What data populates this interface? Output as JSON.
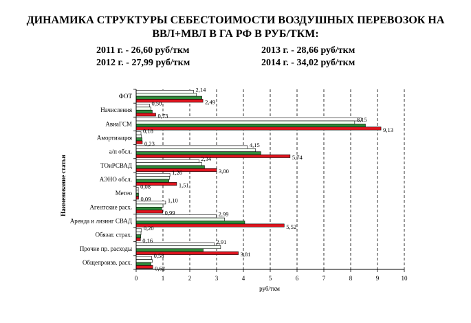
{
  "title_line1": "ДИНАМИКА СТРУКТУРЫ СЕБЕСТОИМОСТИ ВОЗДУШНЫХ ПЕРЕВОЗОК НА",
  "title_line2": "ВВЛ+МВЛ В ГА РФ В РУБ/ТКМ:",
  "year_notes": [
    "2011 г. - 26,60 руб/ткм",
    "2013 г. - 28,66 руб/ткм",
    "2012 г. - 27,99 руб/ткм",
    "2014 г. - 34,02 руб/ткм"
  ],
  "chart_data": {
    "type": "bar",
    "orientation": "horizontal",
    "categories": [
      "ФОТ",
      "Начисления",
      "АвиаГСМ",
      "Амортизация",
      "а/п обсл.",
      "ТОиРСВАД",
      "АЭНО обсл.",
      "Метео",
      "Агентские расх.",
      "Аренда и лизинг СВАД",
      "Обязат. страх.",
      "Прочие пр. расходы",
      "Общепроизв. расх."
    ],
    "series": [
      {
        "values": [
          2.14,
          0.5,
          8.4,
          0.18,
          4.15,
          2.34,
          1.26,
          0.08,
          1.1,
          2.99,
          0.2,
          2.91,
          0.58
        ],
        "color": "#ffffff",
        "labeled": [
          true,
          true,
          false,
          true,
          true,
          true,
          true,
          true,
          true,
          true,
          true,
          true,
          true
        ]
      },
      {
        "values": [
          2.25,
          0.55,
          8.15,
          0.2,
          4.45,
          2.45,
          1.25,
          0.08,
          1.0,
          3.3,
          0.18,
          3.15,
          0.6
        ],
        "color": "#f0fff0",
        "labeled": [
          false,
          false,
          true,
          false,
          false,
          false,
          false,
          false,
          false,
          false,
          false,
          false,
          false
        ]
      },
      {
        "values": [
          2.45,
          0.6,
          8.55,
          0.22,
          4.65,
          2.55,
          1.22,
          0.09,
          0.95,
          4.05,
          0.17,
          2.5,
          0.55
        ],
        "color": "#2e8b3a",
        "labeled": [
          false,
          false,
          false,
          false,
          false,
          false,
          false,
          false,
          false,
          false,
          false,
          false,
          false
        ]
      },
      {
        "values": [
          2.49,
          0.73,
          9.13,
          0.23,
          5.74,
          3.0,
          1.51,
          0.09,
          0.99,
          5.52,
          0.16,
          3.81,
          0.62
        ],
        "color": "#e0141e",
        "labeled": [
          true,
          true,
          true,
          true,
          true,
          true,
          true,
          true,
          true,
          true,
          true,
          true,
          true
        ]
      }
    ],
    "value_labels": [
      [
        "2,14",
        "0,50",
        "",
        "0,18",
        "4,15",
        "2,34",
        "1,26",
        "0,08",
        "1,10",
        "2,99",
        "0,20",
        "2,91",
        "0,58"
      ],
      [
        "",
        "",
        "8,15",
        "",
        "",
        "",
        "",
        "",
        "",
        "",
        "",
        "",
        ""
      ],
      [
        "",
        "",
        "",
        "",
        "",
        "",
        "",
        "",
        "",
        "",
        "",
        "",
        ""
      ],
      [
        "2,49",
        "0,73",
        "9,13",
        "0,23",
        "5,74",
        "3,00",
        "1,51",
        "0,09",
        "0,99",
        "5,52",
        "0,16",
        "3,81",
        "0,62"
      ]
    ],
    "xlim": [
      0,
      10
    ],
    "x_ticks": [
      "0",
      "1",
      "2",
      "3",
      "4",
      "5",
      "6",
      "7",
      "8",
      "9",
      "10"
    ],
    "xlabel": "руб/ткм",
    "ylabel": "Наименование статьи",
    "grid": "vertical dashed"
  }
}
